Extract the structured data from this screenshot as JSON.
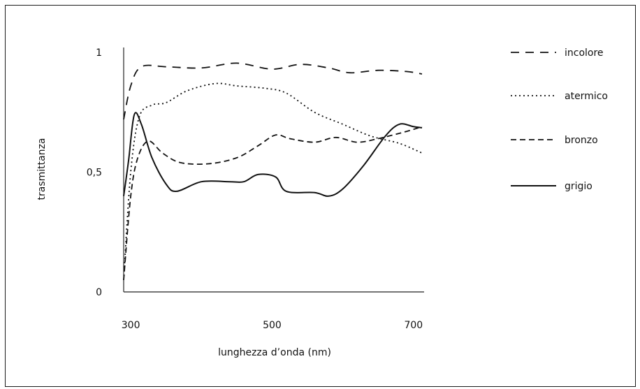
{
  "chart_data": {
    "type": "line",
    "xlabel": "lunghezza d’onda (nm)",
    "ylabel": "trasmittanza",
    "xlim": [
      290,
      715
    ],
    "ylim": [
      0,
      1
    ],
    "x_ticks": [
      "300",
      "500",
      "700"
    ],
    "y_ticks": [
      "0",
      "0,5",
      "1"
    ],
    "grid": false,
    "legend_position": "right",
    "series": [
      {
        "name": "incolore",
        "dash": "12,9",
        "points": [
          [
            290,
            0.72
          ],
          [
            300,
            0.86
          ],
          [
            315,
            0.94
          ],
          [
            350,
            0.94
          ],
          [
            400,
            0.935
          ],
          [
            450,
            0.955
          ],
          [
            500,
            0.93
          ],
          [
            540,
            0.95
          ],
          [
            580,
            0.935
          ],
          [
            610,
            0.915
          ],
          [
            650,
            0.925
          ],
          [
            690,
            0.92
          ],
          [
            712,
            0.91
          ]
        ]
      },
      {
        "name": "atermico",
        "dash": "2,4",
        "points": [
          [
            290,
            0.05
          ],
          [
            300,
            0.5
          ],
          [
            312,
            0.73
          ],
          [
            330,
            0.78
          ],
          [
            350,
            0.79
          ],
          [
            380,
            0.84
          ],
          [
            420,
            0.87
          ],
          [
            450,
            0.86
          ],
          [
            490,
            0.85
          ],
          [
            520,
            0.83
          ],
          [
            560,
            0.75
          ],
          [
            600,
            0.7
          ],
          [
            640,
            0.65
          ],
          [
            680,
            0.62
          ],
          [
            712,
            0.58
          ]
        ]
      },
      {
        "name": "bronzo",
        "dash": "8,5",
        "points": [
          [
            290,
            0.05
          ],
          [
            300,
            0.4
          ],
          [
            310,
            0.56
          ],
          [
            325,
            0.63
          ],
          [
            345,
            0.58
          ],
          [
            370,
            0.54
          ],
          [
            410,
            0.535
          ],
          [
            450,
            0.56
          ],
          [
            480,
            0.61
          ],
          [
            505,
            0.655
          ],
          [
            525,
            0.64
          ],
          [
            560,
            0.625
          ],
          [
            590,
            0.645
          ],
          [
            620,
            0.625
          ],
          [
            650,
            0.64
          ],
          [
            690,
            0.67
          ],
          [
            712,
            0.69
          ]
        ]
      },
      {
        "name": "grigio",
        "dash": "",
        "points": [
          [
            290,
            0.4
          ],
          [
            297,
            0.55
          ],
          [
            305,
            0.74
          ],
          [
            315,
            0.7
          ],
          [
            330,
            0.56
          ],
          [
            350,
            0.45
          ],
          [
            365,
            0.42
          ],
          [
            400,
            0.46
          ],
          [
            440,
            0.46
          ],
          [
            460,
            0.46
          ],
          [
            480,
            0.49
          ],
          [
            505,
            0.48
          ],
          [
            520,
            0.42
          ],
          [
            560,
            0.415
          ],
          [
            580,
            0.4
          ],
          [
            600,
            0.43
          ],
          [
            630,
            0.53
          ],
          [
            660,
            0.65
          ],
          [
            680,
            0.7
          ],
          [
            700,
            0.69
          ],
          [
            712,
            0.685
          ]
        ]
      }
    ]
  }
}
